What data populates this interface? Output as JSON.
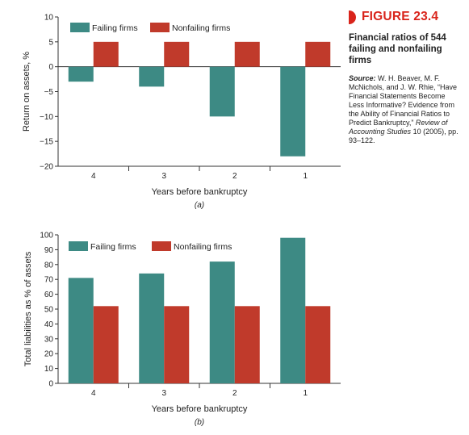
{
  "figure": {
    "number": "FIGURE 23.4",
    "caption": "Financial ratios of 544 failing and nonfailing firms",
    "source_label": "Source:",
    "source_text": "W. H. Beaver, M. F. McNichols, and J. W. Rhie, “Have Financial Statements Become Less Informative? Evidence from the Ability of Financial Ratios to Predict Bankruptcy,”",
    "source_journal": "Review of Accounting Studies",
    "source_tail": "10 (2005), pp. 93–122.",
    "accent_color": "#d9241b"
  },
  "chart_data": [
    {
      "type": "bar",
      "panel_label": "(a)",
      "categories": [
        "4",
        "3",
        "2",
        "1"
      ],
      "series": [
        {
          "name": "Failing firms",
          "color": "#3d8a84",
          "values": [
            -3,
            -4,
            -10,
            -18
          ]
        },
        {
          "name": "Nonfailing firms",
          "color": "#c03a2b",
          "values": [
            5,
            5,
            5,
            5
          ]
        }
      ],
      "xlabel": "Years before bankruptcy",
      "ylabel": "Return on assets, %",
      "ylim": [
        -20,
        10
      ],
      "yticks": [
        "10",
        "5",
        "0",
        "−5",
        "−10",
        "−15",
        "−20"
      ],
      "ytick_values": [
        10,
        5,
        0,
        -5,
        -10,
        -15,
        -20
      ],
      "legend_position": "top-left",
      "grid": false
    },
    {
      "type": "bar",
      "panel_label": "(b)",
      "categories": [
        "4",
        "3",
        "2",
        "1"
      ],
      "series": [
        {
          "name": "Failing firms",
          "color": "#3d8a84",
          "values": [
            71,
            74,
            82,
            98
          ]
        },
        {
          "name": "Nonfailing firms",
          "color": "#c03a2b",
          "values": [
            52,
            52,
            52,
            52
          ]
        }
      ],
      "xlabel": "Years before bankruptcy",
      "ylabel": "Total liabilities as % of assets",
      "ylim": [
        0,
        100
      ],
      "yticks": [
        "100",
        "90",
        "80",
        "70",
        "60",
        "50",
        "40",
        "30",
        "20",
        "10",
        "0"
      ],
      "ytick_values": [
        100,
        90,
        80,
        70,
        60,
        50,
        40,
        30,
        20,
        10,
        0
      ],
      "legend_position": "top-left",
      "grid": false
    }
  ]
}
